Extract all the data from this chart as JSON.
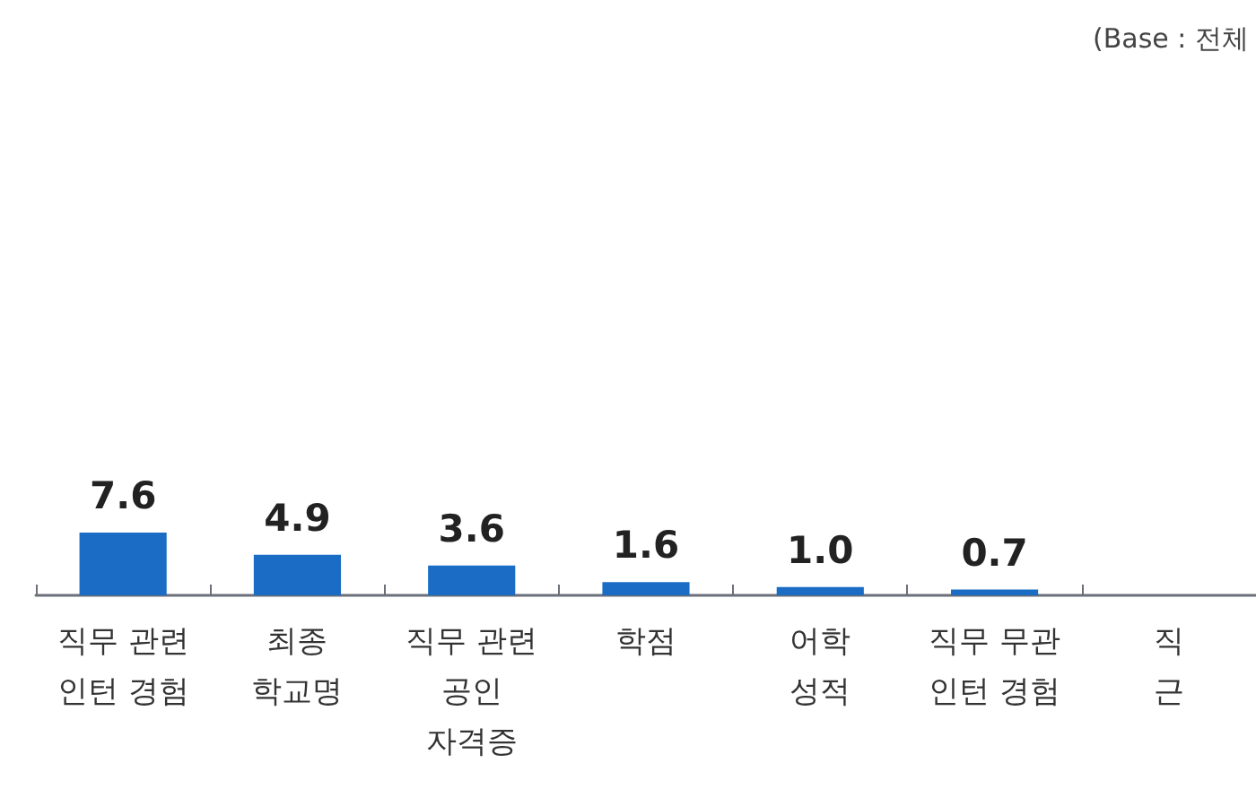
{
  "chart_data": {
    "type": "bar",
    "categories": [
      "직무 관련\n인턴 경험",
      "최종\n학교명",
      "직무 관련\n공인\n자격증",
      "학점",
      "어학\n성적",
      "직무 무관\n인턴 경험",
      "직\n근"
    ],
    "values": [
      7.6,
      4.9,
      3.6,
      1.6,
      1.0,
      0.7,
      null
    ],
    "value_labels": [
      "7.6",
      "4.9",
      "3.6",
      "1.6",
      "1.0",
      "0.7",
      null
    ],
    "color": "#1a6cc4",
    "annotations": [
      "(Base : 전체"
    ]
  }
}
